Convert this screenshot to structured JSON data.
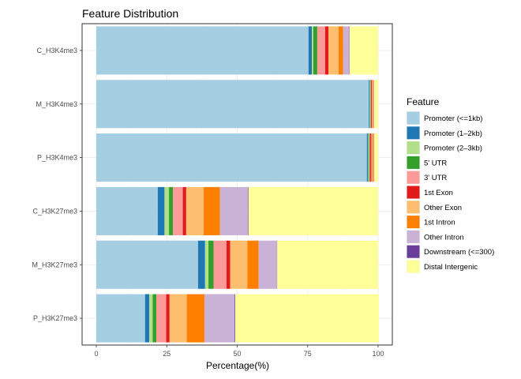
{
  "chart_data": {
    "type": "bar",
    "orientation": "horizontal",
    "stacked": true,
    "title": "Feature Distribution",
    "xlabel": "Percentage(%)",
    "ylabel": "",
    "xlim": [
      0,
      100
    ],
    "xticks": [
      0,
      25,
      50,
      75,
      100
    ],
    "grid": true,
    "legend_position": "right",
    "legend_title": "Feature",
    "categories": [
      "C_H3K4me3",
      "M_H3K4me3",
      "P_H3K4me3",
      "C_H3K27me3",
      "M_H3K27me3",
      "P_H3K27me3"
    ],
    "series": [
      {
        "name": "Promoter (<=1kb)",
        "color": "#A6CEE3",
        "values": [
          75.3,
          96.7,
          96.0,
          21.8,
          36.1,
          17.3
        ]
      },
      {
        "name": "Promoter (1–2kb)",
        "color": "#1F78B4",
        "values": [
          1.2,
          0.3,
          0.4,
          2.4,
          2.5,
          1.5
        ]
      },
      {
        "name": "Promoter (2–3kb)",
        "color": "#B2DF8A",
        "values": [
          0.5,
          0.1,
          0.2,
          1.6,
          1.2,
          1.2
        ]
      },
      {
        "name": "5' UTR",
        "color": "#33A02C",
        "values": [
          1.4,
          0.2,
          0.3,
          1.4,
          1.8,
          1.3
        ]
      },
      {
        "name": "3' UTR",
        "color": "#FB9A99",
        "values": [
          2.8,
          0.2,
          0.3,
          3.5,
          4.6,
          3.5
        ]
      },
      {
        "name": "1st Exon",
        "color": "#E31A1C",
        "values": [
          1.2,
          0.3,
          0.4,
          1.2,
          1.3,
          1.2
        ]
      },
      {
        "name": "Other Exon",
        "color": "#FDBF6F",
        "values": [
          3.6,
          0.3,
          0.4,
          6.2,
          6.1,
          6.1
        ]
      },
      {
        "name": "1st Intron",
        "color": "#FF7F00",
        "values": [
          1.6,
          0.3,
          0.4,
          5.8,
          4.0,
          6.3
        ]
      },
      {
        "name": "Other Intron",
        "color": "#CAB2D6",
        "values": [
          2.2,
          0.2,
          0.3,
          9.9,
          6.5,
          10.7
        ]
      },
      {
        "name": "Downstream (<=300)",
        "color": "#6A3D9A",
        "values": [
          0.1,
          0.0,
          0.0,
          0.2,
          0.1,
          0.2
        ]
      },
      {
        "name": "Distal Intergenic",
        "color": "#FFFF99",
        "values": [
          10.1,
          1.4,
          1.3,
          46.0,
          35.8,
          51.0
        ]
      }
    ]
  }
}
